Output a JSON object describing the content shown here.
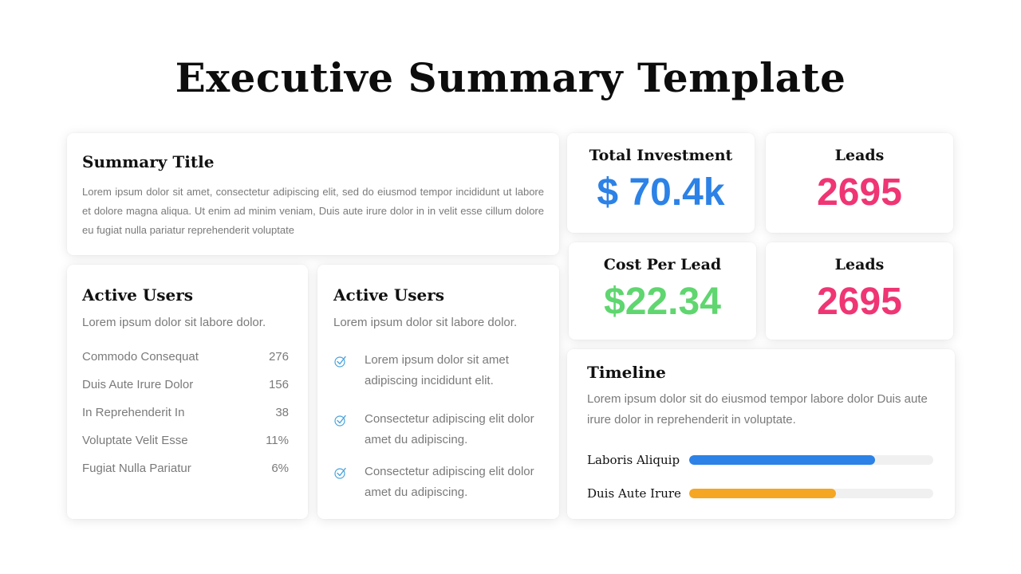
{
  "title": "Executive Summary Template",
  "summary": {
    "heading": "Summary Title",
    "body": "Lorem ipsum dolor sit amet, consectetur adipiscing elit, sed do eiusmod tempor incididunt ut labore et dolore magna aliqua. Ut enim ad minim veniam, Duis aute irure dolor in in velit esse cillum dolore eu fugiat nulla pariatur reprehenderit voluptate"
  },
  "active_users_list": {
    "heading": "Active Users",
    "subtitle": "Lorem ipsum dolor sit labore dolor.",
    "rows": [
      {
        "label": "Commodo Consequat",
        "value": "276"
      },
      {
        "label": "Duis Aute Irure Dolor",
        "value": "156"
      },
      {
        "label": "In Reprehenderit In",
        "value": "38"
      },
      {
        "label": "Voluptate Velit Esse",
        "value": "11%"
      },
      {
        "label": "Fugiat Nulla Pariatur",
        "value": "6%"
      }
    ]
  },
  "active_users_checks": {
    "heading": "Active Users",
    "subtitle": "Lorem ipsum dolor sit labore dolor.",
    "items": [
      {
        "text": "Lorem ipsum dolor sit amet adipiscing incididunt elit.",
        "icon": "check-icon"
      },
      {
        "text": "Consectetur adipiscing elit dolor amet du adipiscing.",
        "icon": "check-icon"
      },
      {
        "text": "Consectetur adipiscing elit dolor amet du adipiscing.",
        "icon": "check-icon"
      }
    ]
  },
  "kpis": [
    {
      "label": "Total Investment",
      "value": "$ 70.4k",
      "color": "#2c82e6"
    },
    {
      "label": "Leads",
      "value": "2695",
      "color": "#ef3574"
    },
    {
      "label": "Cost Per Lead",
      "value": "$22.34",
      "color": "#5fd66f"
    },
    {
      "label": "Leads",
      "value": "2695",
      "color": "#ef3574"
    }
  ],
  "timeline": {
    "heading": "Timeline",
    "body": "Lorem ipsum dolor sit do eiusmod tempor labore dolor Duis aute irure dolor in reprehenderit in voluptate.",
    "bars": [
      {
        "label": "Laboris Aliquip",
        "percent": 76,
        "color": "#2c82e6"
      },
      {
        "label": "Duis Aute Irure",
        "percent": 60,
        "color": "#f5a623"
      }
    ]
  },
  "colors": {
    "check_icon": "#4aa3dc"
  }
}
